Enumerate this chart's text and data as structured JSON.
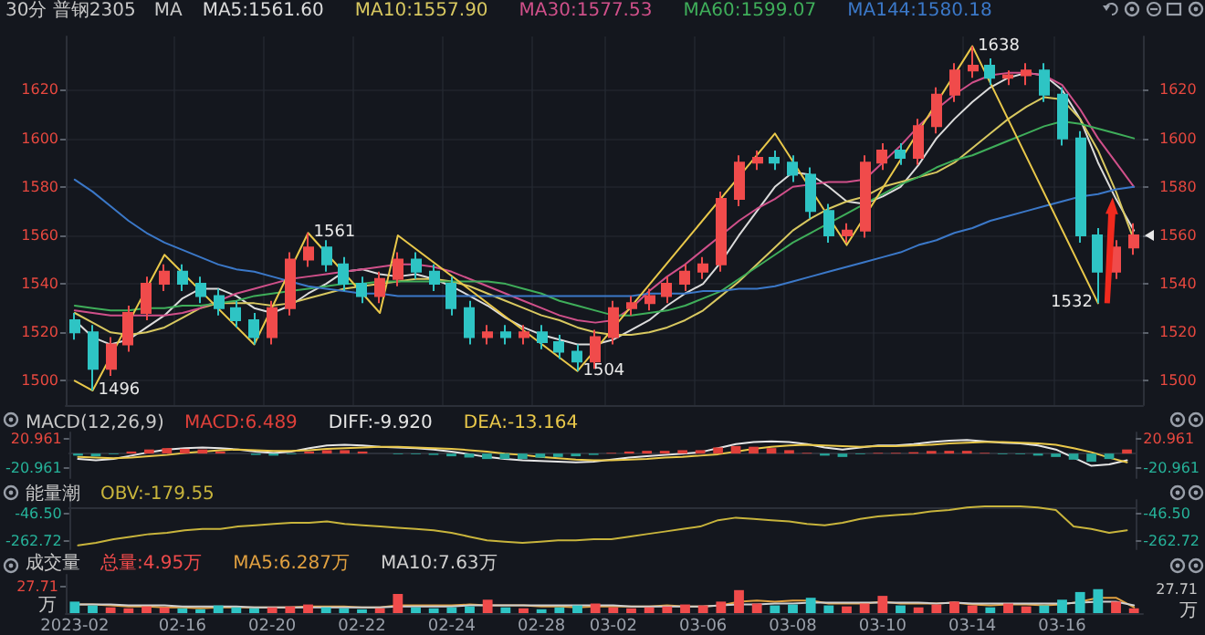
{
  "chart_data": [
    {
      "type": "candlestick",
      "title": "30分 普钢2305",
      "legend_title": "MA",
      "legend": "top left",
      "grid": true,
      "marker": "none",
      "tick_labels": "y",
      "ylim": [
        1490,
        1642
      ],
      "yticks": [
        1500,
        1520,
        1540,
        1560,
        1580,
        1600,
        1620
      ],
      "y2lim": [
        1490,
        1642
      ],
      "y2ticks": [
        1500,
        1520,
        1540,
        1560,
        1580,
        1600,
        1620
      ],
      "ohlc": [
        [
          1525,
          1528,
          1517,
          1520
        ],
        [
          1520,
          1523,
          1496,
          1505
        ],
        [
          1505,
          1518,
          1502,
          1515
        ],
        [
          1515,
          1531,
          1512,
          1528
        ],
        [
          1528,
          1543,
          1525,
          1540
        ],
        [
          1540,
          1548,
          1537,
          1545
        ],
        [
          1545,
          1548,
          1537,
          1540
        ],
        [
          1540,
          1543,
          1532,
          1535
        ],
        [
          1535,
          1538,
          1527,
          1530
        ],
        [
          1530,
          1533,
          1522,
          1525
        ],
        [
          1525,
          1528,
          1515,
          1518
        ],
        [
          1518,
          1533,
          1515,
          1530
        ],
        [
          1530,
          1553,
          1527,
          1550
        ],
        [
          1550,
          1561,
          1547,
          1555
        ],
        [
          1555,
          1558,
          1545,
          1548
        ],
        [
          1548,
          1551,
          1537,
          1540
        ],
        [
          1540,
          1543,
          1532,
          1535
        ],
        [
          1535,
          1545,
          1532,
          1542
        ],
        [
          1542,
          1553,
          1539,
          1550
        ],
        [
          1550,
          1553,
          1542,
          1545
        ],
        [
          1545,
          1548,
          1537,
          1540
        ],
        [
          1540,
          1543,
          1527,
          1530
        ],
        [
          1530,
          1533,
          1515,
          1518
        ],
        [
          1518,
          1523,
          1515,
          1520
        ],
        [
          1520,
          1523,
          1515,
          1518
        ],
        [
          1518,
          1523,
          1515,
          1520
        ],
        [
          1520,
          1523,
          1513,
          1516
        ],
        [
          1516,
          1519,
          1509,
          1512
        ],
        [
          1512,
          1515,
          1504,
          1508
        ],
        [
          1508,
          1521,
          1505,
          1518
        ],
        [
          1518,
          1533,
          1515,
          1530
        ],
        [
          1530,
          1535,
          1527,
          1532
        ],
        [
          1532,
          1538,
          1529,
          1535
        ],
        [
          1535,
          1543,
          1532,
          1540
        ],
        [
          1540,
          1548,
          1537,
          1545
        ],
        [
          1545,
          1551,
          1542,
          1548
        ],
        [
          1548,
          1578,
          1545,
          1575
        ],
        [
          1575,
          1593,
          1572,
          1590
        ],
        [
          1590,
          1595,
          1587,
          1592
        ],
        [
          1592,
          1595,
          1587,
          1590
        ],
        [
          1590,
          1593,
          1582,
          1585
        ],
        [
          1585,
          1588,
          1567,
          1570
        ],
        [
          1570,
          1573,
          1557,
          1560
        ],
        [
          1560,
          1565,
          1557,
          1562
        ],
        [
          1562,
          1593,
          1559,
          1590
        ],
        [
          1590,
          1598,
          1587,
          1595
        ],
        [
          1595,
          1598,
          1589,
          1592
        ],
        [
          1592,
          1608,
          1589,
          1605
        ],
        [
          1605,
          1621,
          1602,
          1618
        ],
        [
          1618,
          1631,
          1615,
          1628
        ],
        [
          1628,
          1638,
          1625,
          1630
        ],
        [
          1630,
          1633,
          1622,
          1625
        ],
        [
          1625,
          1628,
          1622,
          1626
        ],
        [
          1626,
          1631,
          1622,
          1628
        ],
        [
          1628,
          1631,
          1615,
          1618
        ],
        [
          1618,
          1621,
          1597,
          1600
        ],
        [
          1600,
          1603,
          1557,
          1560
        ],
        [
          1560,
          1563,
          1532,
          1545
        ],
        [
          1545,
          1558,
          1542,
          1555
        ],
        [
          1555,
          1565,
          1552,
          1560
        ]
      ],
      "colors": [
        "#2ec4c4",
        "#2ec4c4",
        "#f04b4b",
        "#f04b4b",
        "#f04b4b",
        "#f04b4b",
        "#2ec4c4",
        "#2ec4c4",
        "#2ec4c4",
        "#2ec4c4",
        "#2ec4c4",
        "#f04b4b",
        "#f04b4b",
        "#f04b4b",
        "#2ec4c4",
        "#2ec4c4",
        "#2ec4c4",
        "#f04b4b",
        "#f04b4b",
        "#2ec4c4",
        "#2ec4c4",
        "#2ec4c4",
        "#2ec4c4",
        "#f04b4b",
        "#2ec4c4",
        "#f04b4b",
        "#2ec4c4",
        "#2ec4c4",
        "#2ec4c4",
        "#f04b4b",
        "#f04b4b",
        "#f04b4b",
        "#f04b4b",
        "#f04b4b",
        "#f04b4b",
        "#f04b4b",
        "#f04b4b",
        "#f04b4b",
        "#f04b4b",
        "#2ec4c4",
        "#2ec4c4",
        "#2ec4c4",
        "#2ec4c4",
        "#f04b4b",
        "#f04b4b",
        "#f04b4b",
        "#2ec4c4",
        "#f04b4b",
        "#f04b4b",
        "#f04b4b",
        "#f04b4b",
        "#2ec4c4",
        "#f04b4b",
        "#f04b4b",
        "#2ec4c4",
        "#2ec4c4",
        "#2ec4c4",
        "#2ec4c4",
        "#f04b4b",
        "#f04b4b"
      ],
      "series": [
        {
          "type": "line",
          "name": "MA5:1561.60",
          "color": "#dcdcdc",
          "values": [
            1525,
            1518,
            1515,
            1517,
            1522,
            1527,
            1534,
            1538,
            1538,
            1535,
            1530,
            1528,
            1531,
            1536,
            1540,
            1545,
            1546,
            1544,
            1543,
            1544,
            1542,
            1539,
            1535,
            1531,
            1526,
            1522,
            1519,
            1517,
            1515,
            1515,
            1517,
            1521,
            1525,
            1531,
            1536,
            1540,
            1549,
            1560,
            1570,
            1580,
            1586,
            1585,
            1580,
            1574,
            1573,
            1576,
            1580,
            1589,
            1600,
            1608,
            1615,
            1621,
            1625,
            1627,
            1626,
            1620,
            1608,
            1590,
            1575,
            1562
          ]
        },
        {
          "type": "line",
          "name": "MA10:1557.90",
          "color": "#d8c860",
          "values": [
            1528,
            1524,
            1520,
            1519,
            1520,
            1522,
            1526,
            1530,
            1532,
            1532,
            1532,
            1531,
            1532,
            1534,
            1536,
            1538,
            1539,
            1540,
            1541,
            1542,
            1542,
            1541,
            1539,
            1536,
            1533,
            1530,
            1527,
            1525,
            1522,
            1520,
            1519,
            1519,
            1520,
            1522,
            1525,
            1529,
            1535,
            1541,
            1548,
            1555,
            1562,
            1567,
            1571,
            1574,
            1576,
            1580,
            1582,
            1584,
            1586,
            1590,
            1596,
            1602,
            1608,
            1613,
            1617,
            1616,
            1608,
            1595,
            1578,
            1558
          ]
        },
        {
          "type": "line",
          "name": "MA30:1577.53",
          "color": "#d0508a",
          "values": [
            1529,
            1528,
            1527,
            1527,
            1527,
            1527,
            1528,
            1530,
            1533,
            1536,
            1538,
            1540,
            1542,
            1543,
            1544,
            1545,
            1546,
            1547,
            1548,
            1548,
            1547,
            1545,
            1542,
            1539,
            1536,
            1533,
            1530,
            1527,
            1525,
            1524,
            1525,
            1530,
            1537,
            1543,
            1548,
            1554,
            1560,
            1566,
            1571,
            1575,
            1580,
            1581,
            1582,
            1582,
            1583,
            1590,
            1597,
            1605,
            1612,
            1618,
            1623,
            1626,
            1627,
            1627,
            1626,
            1622,
            1612,
            1600,
            1590,
            1580
          ]
        },
        {
          "type": "line",
          "name": "MA60:1599.07",
          "color": "#3fae5a",
          "values": [
            1531,
            1530,
            1529,
            1529,
            1530,
            1530,
            1531,
            1531,
            1532,
            1533,
            1535,
            1536,
            1537,
            1538,
            1539,
            1540,
            1540,
            1541,
            1541,
            1541,
            1541,
            1541,
            1541,
            1541,
            1540,
            1538,
            1536,
            1533,
            1531,
            1529,
            1527,
            1527,
            1528,
            1529,
            1531,
            1534,
            1537,
            1542,
            1547,
            1552,
            1557,
            1561,
            1565,
            1569,
            1573,
            1577,
            1581,
            1584,
            1588,
            1591,
            1593,
            1596,
            1599,
            1602,
            1605,
            1607,
            1606,
            1604,
            1602,
            1600
          ]
        },
        {
          "type": "line",
          "name": "MA144:1580.18",
          "color": "#3b78c8",
          "values": [
            1583,
            1578,
            1572,
            1566,
            1561,
            1557,
            1554,
            1551,
            1548,
            1546,
            1545,
            1543,
            1541,
            1539,
            1538,
            1537,
            1536,
            1536,
            1535,
            1535,
            1535,
            1535,
            1535,
            1535,
            1535,
            1535,
            1535,
            1535,
            1535,
            1535,
            1535,
            1535,
            1536,
            1536,
            1536,
            1537,
            1537,
            1538,
            1538,
            1539,
            1541,
            1543,
            1545,
            1547,
            1549,
            1551,
            1553,
            1556,
            1558,
            1561,
            1563,
            1566,
            1568,
            1570,
            1572,
            1574,
            1576,
            1577,
            1579,
            1580
          ]
        },
        {
          "type": "line",
          "color": "#e9c84a",
          "values": [
            1500,
            1496,
            null,
            null,
            null,
            1552,
            null,
            null,
            null,
            null,
            1515,
            null,
            null,
            1561,
            null,
            null,
            null,
            1528,
            1560,
            null,
            null,
            null,
            null,
            null,
            null,
            null,
            null,
            null,
            1504,
            null,
            null,
            null,
            null,
            null,
            null,
            null,
            null,
            null,
            null,
            1602,
            null,
            null,
            null,
            1556,
            null,
            null,
            null,
            null,
            null,
            null,
            1638,
            null,
            null,
            null,
            null,
            null,
            null,
            1532,
            null,
            null
          ],
          "value_labels": [
            null,
            "1496",
            null,
            null,
            null,
            null,
            null,
            null,
            null,
            null,
            null,
            null,
            null,
            "1561",
            null,
            null,
            null,
            null,
            null,
            null,
            null,
            null,
            null,
            null,
            null,
            null,
            null,
            null,
            "1504",
            null,
            null,
            null,
            null,
            null,
            null,
            null,
            null,
            null,
            null,
            null,
            null,
            null,
            null,
            null,
            null,
            null,
            null,
            null,
            null,
            null,
            "1638",
            null,
            null,
            null,
            null,
            null,
            null,
            "1532",
            null,
            null
          ]
        }
      ]
    },
    {
      "type": "line",
      "legend_title": "MACD(12,26,9)",
      "legend": "top left",
      "marker": "none",
      "tick_labels": "y",
      "ylim": [
        -36,
        31
      ],
      "yticks": [
        20.961,
        -20.961
      ],
      "y2lim": [
        -36,
        31
      ],
      "y2ticks": [
        20.961,
        -20.961
      ],
      "series": [
        {
          "type": "bar",
          "name": "MACD:6.489",
          "color": "#e0403a",
          "values": [
            -3,
            -4,
            -1,
            3,
            6,
            8,
            7,
            6,
            3,
            0,
            -2,
            -3,
            -1,
            3,
            5,
            5,
            3,
            0,
            -1,
            -1,
            -2,
            -4,
            -6,
            -8,
            -8,
            -8,
            -6,
            -5,
            -4,
            -2,
            1,
            3,
            4,
            4,
            5,
            5,
            9,
            11,
            10,
            8,
            5,
            1,
            -3,
            -5,
            -1,
            1,
            1,
            2,
            4,
            4,
            4,
            1,
            -1,
            -1,
            -3,
            -5,
            -9,
            -12,
            -8,
            6
          ],
          "colors": [
            "#26a69a",
            "#26a69a",
            "#26a69a",
            "#e0403a",
            "#e0403a",
            "#e0403a",
            "#e0403a",
            "#e0403a",
            "#e0403a",
            "#e0403a",
            "#26a69a",
            "#26a69a",
            "#26a69a",
            "#e0403a",
            "#e0403a",
            "#e0403a",
            "#e0403a",
            "#e0403a",
            "#26a69a",
            "#26a69a",
            "#26a69a",
            "#26a69a",
            "#26a69a",
            "#26a69a",
            "#26a69a",
            "#26a69a",
            "#26a69a",
            "#26a69a",
            "#26a69a",
            "#26a69a",
            "#e0403a",
            "#e0403a",
            "#e0403a",
            "#e0403a",
            "#e0403a",
            "#e0403a",
            "#e0403a",
            "#e0403a",
            "#e0403a",
            "#e0403a",
            "#e0403a",
            "#e0403a",
            "#26a69a",
            "#26a69a",
            "#26a69a",
            "#e0403a",
            "#e0403a",
            "#e0403a",
            "#e0403a",
            "#e0403a",
            "#e0403a",
            "#e0403a",
            "#26a69a",
            "#26a69a",
            "#26a69a",
            "#26a69a",
            "#26a69a",
            "#26a69a",
            "#26a69a",
            "#e0403a"
          ]
        },
        {
          "type": "line",
          "name": "DIFF:-9.920",
          "color": "#e6e6e6",
          "values": [
            -8,
            -10,
            -8,
            -3,
            2,
            6,
            8,
            9,
            8,
            6,
            3,
            1,
            3,
            8,
            12,
            13,
            12,
            10,
            9,
            8,
            6,
            3,
            -1,
            -5,
            -8,
            -10,
            -11,
            -12,
            -13,
            -12,
            -9,
            -6,
            -4,
            -2,
            0,
            2,
            8,
            14,
            17,
            18,
            17,
            14,
            9,
            6,
            9,
            12,
            12,
            14,
            17,
            19,
            20,
            18,
            16,
            15,
            12,
            6,
            -6,
            -18,
            -16,
            -10
          ]
        },
        {
          "type": "line",
          "name": "DEA:-13.164",
          "color": "#e9c84a",
          "values": [
            -5,
            -6,
            -7,
            -6,
            -4,
            -2,
            1,
            3,
            5,
            6,
            5,
            4,
            4,
            5,
            7,
            8,
            9,
            10,
            10,
            9,
            8,
            7,
            5,
            3,
            0,
            -2,
            -5,
            -7,
            -9,
            -10,
            -10,
            -9,
            -8,
            -6,
            -5,
            -3,
            -1,
            3,
            7,
            10,
            12,
            13,
            12,
            11,
            10,
            11,
            11,
            12,
            13,
            15,
            16,
            17,
            17,
            16,
            15,
            13,
            8,
            2,
            -6,
            -13
          ]
        }
      ]
    },
    {
      "type": "line",
      "legend_title": "能量潮",
      "legend": "top left",
      "marker": "none",
      "tick_labels": "y",
      "ylim": [
        -330,
        60
      ],
      "yticks": [
        {
          "value": -46.5,
          "label": "-46.50"
        },
        -262.72
      ],
      "y2lim": [
        -330,
        60
      ],
      "y2ticks": [
        {
          "value": -46.5,
          "label": "-46.50"
        },
        -262.72
      ],
      "series": [
        {
          "type": "line",
          "name": "OBV:-179.55",
          "color": "#c8b43c",
          "values": [
            -300,
            -280,
            -250,
            -230,
            -210,
            -200,
            -180,
            -170,
            -170,
            -150,
            -140,
            -130,
            -120,
            -120,
            -110,
            -130,
            -140,
            -150,
            -160,
            -170,
            -180,
            -200,
            -230,
            -260,
            -270,
            -280,
            -270,
            -260,
            -260,
            -250,
            -250,
            -230,
            -210,
            -190,
            -170,
            -150,
            -100,
            -80,
            -90,
            -100,
            -110,
            -130,
            -140,
            -120,
            -90,
            -70,
            -60,
            -50,
            -30,
            -20,
            0,
            10,
            10,
            10,
            0,
            -20,
            -150,
            -170,
            -200,
            -180
          ]
        }
      ]
    },
    {
      "type": "bar",
      "legend_title": "成交量",
      "legend": "top left",
      "marker": "none",
      "ylabel": "万",
      "categories": [
        "2023-02",
        null,
        null,
        null,
        null,
        null,
        "02-16",
        null,
        null,
        null,
        null,
        "02-20",
        null,
        null,
        null,
        null,
        "02-22",
        null,
        null,
        null,
        null,
        "02-24",
        null,
        null,
        null,
        null,
        "02-28",
        null,
        null,
        null,
        "03-02",
        null,
        null,
        null,
        null,
        "03-06",
        null,
        null,
        null,
        null,
        "03-08",
        null,
        null,
        null,
        null,
        "03-10",
        null,
        null,
        null,
        null,
        "03-14",
        null,
        null,
        null,
        null,
        "03-16",
        null,
        null,
        null,
        null
      ],
      "ylim": [
        0,
        40
      ],
      "yticks": [
        27.71
      ],
      "annotations": [
        "27.71",
        "万"
      ],
      "series": [
        {
          "type": "bar",
          "name": "总量:4.95万",
          "color": "#f04b4b",
          "values": [
            12,
            8,
            6,
            5,
            7,
            6,
            5,
            4,
            8,
            6,
            5,
            6,
            7,
            9,
            6,
            5,
            4,
            5,
            20,
            6,
            5,
            6,
            7,
            14,
            6,
            5,
            4,
            6,
            8,
            10,
            6,
            5,
            6,
            7,
            9,
            8,
            12,
            24,
            10,
            8,
            9,
            16,
            8,
            7,
            10,
            18,
            8,
            6,
            9,
            12,
            8,
            6,
            10,
            7,
            8,
            14,
            22,
            25,
            12,
            5
          ],
          "colors": [
            "#2ec4c4",
            "#2ec4c4",
            "#f04b4b",
            "#f04b4b",
            "#f04b4b",
            "#f04b4b",
            "#2ec4c4",
            "#2ec4c4",
            "#2ec4c4",
            "#2ec4c4",
            "#2ec4c4",
            "#f04b4b",
            "#f04b4b",
            "#f04b4b",
            "#2ec4c4",
            "#2ec4c4",
            "#2ec4c4",
            "#f04b4b",
            "#f04b4b",
            "#2ec4c4",
            "#2ec4c4",
            "#2ec4c4",
            "#2ec4c4",
            "#f04b4b",
            "#2ec4c4",
            "#f04b4b",
            "#2ec4c4",
            "#2ec4c4",
            "#2ec4c4",
            "#f04b4b",
            "#f04b4b",
            "#f04b4b",
            "#f04b4b",
            "#f04b4b",
            "#f04b4b",
            "#f04b4b",
            "#f04b4b",
            "#f04b4b",
            "#f04b4b",
            "#2ec4c4",
            "#2ec4c4",
            "#2ec4c4",
            "#2ec4c4",
            "#f04b4b",
            "#f04b4b",
            "#f04b4b",
            "#2ec4c4",
            "#f04b4b",
            "#f04b4b",
            "#f04b4b",
            "#f04b4b",
            "#2ec4c4",
            "#f04b4b",
            "#f04b4b",
            "#2ec4c4",
            "#2ec4c4",
            "#2ec4c4",
            "#2ec4c4",
            "#f04b4b",
            "#f04b4b"
          ]
        },
        {
          "type": "line",
          "name": "MA5:6.287万",
          "color": "#e0a040",
          "values": [
            9,
            9,
            8,
            7,
            7,
            6,
            6,
            5,
            6,
            6,
            6,
            6,
            6,
            7,
            7,
            7,
            6,
            6,
            8,
            8,
            8,
            8,
            9,
            8,
            8,
            8,
            7,
            7,
            6,
            7,
            7,
            7,
            7,
            8,
            7,
            7,
            8,
            12,
            13,
            12,
            13,
            13,
            10,
            10,
            10,
            12,
            10,
            10,
            10,
            11,
            9,
            8,
            9,
            9,
            8,
            9,
            12,
            16,
            16,
            6
          ]
        },
        {
          "type": "line",
          "name": "MA10:7.63万",
          "color": "#cfcfcf",
          "values": [
            9,
            9,
            9,
            8,
            8,
            8,
            7,
            7,
            7,
            7,
            6,
            6,
            6,
            6,
            6,
            6,
            6,
            6,
            7,
            7,
            7,
            7,
            8,
            8,
            8,
            8,
            8,
            8,
            8,
            8,
            8,
            7,
            7,
            7,
            7,
            7,
            8,
            9,
            9,
            10,
            10,
            11,
            11,
            11,
            11,
            11,
            11,
            11,
            10,
            11,
            10,
            10,
            10,
            10,
            10,
            10,
            11,
            12,
            12,
            8
          ]
        }
      ]
    }
  ]
}
